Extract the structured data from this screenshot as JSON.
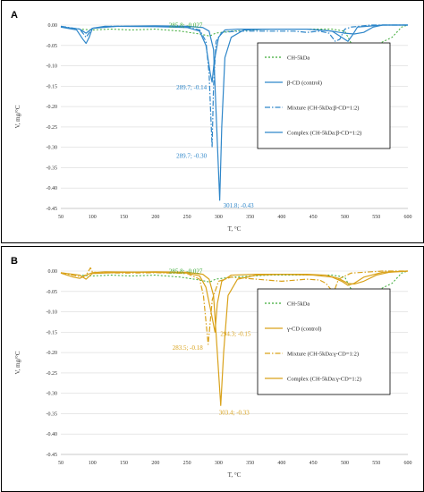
{
  "chart_data": [
    {
      "panel": "A",
      "type": "line",
      "xlabel": "T, °C",
      "ylabel": "V, mg/°C",
      "xlim": [
        50,
        600
      ],
      "ylim": [
        -0.45,
        0.0
      ],
      "x_ticks": [
        "50",
        "100",
        "150",
        "200",
        "250",
        "300",
        "350",
        "400",
        "450",
        "500",
        "550",
        "600"
      ],
      "y_ticks": [
        "0.00",
        "-0.05",
        "-0.10",
        "-0.15",
        "-0.20",
        "-0.25",
        "-0.30",
        "-0.35",
        "-0.40",
        "-0.45"
      ],
      "legend_position": "right",
      "series": [
        {
          "name": "CH-5kDa",
          "color": "#3aaa35",
          "dash": "dotted",
          "x": [
            50,
            80,
            100,
            130,
            160,
            200,
            240,
            270,
            285.8,
            295,
            320,
            380,
            440,
            480,
            500,
            512,
            525,
            540,
            555,
            575,
            590,
            600
          ],
          "y": [
            -0.005,
            -0.01,
            -0.012,
            -0.01,
            -0.012,
            -0.01,
            -0.015,
            -0.022,
            -0.027,
            -0.02,
            -0.015,
            -0.01,
            -0.01,
            -0.01,
            -0.015,
            -0.05,
            -0.058,
            -0.052,
            -0.045,
            -0.03,
            -0.005,
            0.0
          ]
        },
        {
          "name": "β-CD (control)",
          "color": "#2e86c9",
          "dash": "solid",
          "x": [
            50,
            75,
            85,
            90,
            95,
            100,
            120,
            200,
            250,
            270,
            280,
            287,
            289.7,
            293,
            300,
            310,
            330,
            380,
            440,
            460,
            480,
            495,
            505,
            512,
            520,
            560,
            600
          ],
          "y": [
            -0.005,
            -0.012,
            -0.035,
            -0.045,
            -0.03,
            -0.008,
            -0.003,
            -0.004,
            -0.006,
            -0.015,
            -0.05,
            -0.12,
            -0.14,
            -0.09,
            -0.03,
            -0.012,
            -0.01,
            -0.01,
            -0.01,
            -0.012,
            -0.015,
            -0.03,
            -0.04,
            -0.025,
            -0.005,
            0.0,
            0.0
          ]
        },
        {
          "name": "Mixture (CH-5kDa:β-CD=1:2)",
          "color": "#2e86c9",
          "dash": "dashdot",
          "x": [
            50,
            80,
            90,
            100,
            130,
            200,
            250,
            270,
            280,
            285,
            289.7,
            292,
            296,
            305,
            330,
            380,
            420,
            440,
            460,
            475,
            485,
            492,
            500,
            510,
            540,
            600
          ],
          "y": [
            -0.003,
            -0.01,
            -0.03,
            -0.008,
            -0.003,
            -0.003,
            -0.005,
            -0.012,
            -0.04,
            -0.12,
            -0.3,
            -0.15,
            -0.04,
            -0.018,
            -0.015,
            -0.015,
            -0.015,
            -0.018,
            -0.015,
            -0.02,
            -0.04,
            -0.035,
            -0.01,
            -0.005,
            0.0,
            0.0
          ]
        },
        {
          "name": "Complex (CH-5kDa:β-CD=1:2)",
          "color": "#2e86c9",
          "dash": "solid",
          "x": [
            50,
            80,
            90,
            100,
            140,
            200,
            250,
            275,
            285,
            292,
            297,
            301.8,
            305,
            310,
            320,
            340,
            380,
            440,
            480,
            500,
            515,
            530,
            545,
            560,
            600
          ],
          "y": [
            -0.004,
            -0.01,
            -0.02,
            -0.008,
            -0.003,
            -0.002,
            -0.003,
            -0.006,
            -0.015,
            -0.06,
            -0.25,
            -0.43,
            -0.25,
            -0.08,
            -0.03,
            -0.012,
            -0.01,
            -0.01,
            -0.015,
            -0.02,
            -0.022,
            -0.018,
            -0.005,
            0.0,
            0.0
          ]
        }
      ],
      "annotations": [
        {
          "text": "285.8; -0.027",
          "x": 285.8,
          "y": -0.027,
          "color": "#3aaa35"
        },
        {
          "text": "289.7; -0.14",
          "x": 289.7,
          "y": -0.14,
          "color": "#2e86c9"
        },
        {
          "text": "289.7; -0.30",
          "x": 289.7,
          "y": -0.3,
          "color": "#2e86c9"
        },
        {
          "text": "301.8; -0.43",
          "x": 301.8,
          "y": -0.43,
          "color": "#2e86c9"
        }
      ]
    },
    {
      "panel": "B",
      "type": "line",
      "xlabel": "T, °C",
      "ylabel": "V, mg/°C",
      "xlim": [
        50,
        600
      ],
      "ylim": [
        -0.45,
        0.0
      ],
      "x_ticks": [
        "50",
        "100",
        "150",
        "200",
        "250",
        "300",
        "350",
        "400",
        "450",
        "500",
        "550",
        "600"
      ],
      "y_ticks": [
        "0.00",
        "-0.05",
        "-0.10",
        "-0.15",
        "-0.20",
        "-0.25",
        "-0.30",
        "-0.35",
        "-0.40",
        "-0.45"
      ],
      "legend_position": "right",
      "series": [
        {
          "name": "CH-5kDa",
          "color": "#3aaa35",
          "dash": "dotted",
          "x": [
            50,
            80,
            100,
            130,
            160,
            200,
            240,
            270,
            285.8,
            295,
            320,
            380,
            440,
            480,
            500,
            512,
            525,
            540,
            555,
            575,
            590,
            600
          ],
          "y": [
            -0.005,
            -0.01,
            -0.012,
            -0.01,
            -0.012,
            -0.01,
            -0.015,
            -0.022,
            -0.027,
            -0.02,
            -0.015,
            -0.01,
            -0.01,
            -0.01,
            -0.015,
            -0.05,
            -0.058,
            -0.052,
            -0.045,
            -0.03,
            -0.005,
            0.0
          ]
        },
        {
          "name": "γ-CD (control)",
          "color": "#d9a21b",
          "dash": "solid",
          "x": [
            50,
            70,
            80,
            90,
            100,
            120,
            200,
            250,
            270,
            280,
            288,
            294.3,
            298,
            305,
            320,
            360,
            400,
            450,
            480,
            495,
            505,
            515,
            530,
            560,
            600
          ],
          "y": [
            -0.005,
            -0.015,
            -0.018,
            -0.01,
            -0.004,
            -0.002,
            -0.003,
            -0.005,
            -0.012,
            -0.04,
            -0.1,
            -0.15,
            -0.08,
            -0.025,
            -0.01,
            -0.008,
            -0.008,
            -0.01,
            -0.015,
            -0.025,
            -0.035,
            -0.03,
            -0.015,
            -0.003,
            0.0
          ]
        },
        {
          "name": "Mixture (CH-5kDa:γ-CD=1:2)",
          "color": "#d9a21b",
          "dash": "dashdot",
          "x": [
            50,
            75,
            85,
            92,
            97,
            100,
            110,
            150,
            200,
            250,
            270,
            276,
            283.5,
            290,
            300,
            320,
            360,
            400,
            440,
            460,
            470,
            478,
            483,
            490,
            510,
            560,
            600
          ],
          "y": [
            -0.004,
            -0.012,
            -0.015,
            -0.005,
            0.008,
            -0.002,
            -0.004,
            -0.005,
            -0.004,
            -0.006,
            -0.02,
            -0.06,
            -0.18,
            -0.07,
            -0.025,
            -0.015,
            -0.02,
            -0.025,
            -0.02,
            -0.022,
            -0.03,
            -0.045,
            -0.05,
            -0.02,
            -0.005,
            0.0,
            0.0
          ]
        },
        {
          "name": "Complex (CH-5kDa:γ-CD=1:2)",
          "color": "#d9a21b",
          "dash": "solid",
          "x": [
            50,
            80,
            90,
            100,
            150,
            200,
            250,
            275,
            285,
            292,
            298,
            303.4,
            308,
            315,
            330,
            360,
            400,
            440,
            470,
            490,
            505,
            515,
            530,
            550,
            570,
            600
          ],
          "y": [
            -0.004,
            -0.01,
            -0.02,
            -0.006,
            -0.003,
            -0.002,
            -0.003,
            -0.008,
            -0.02,
            -0.06,
            -0.2,
            -0.33,
            -0.2,
            -0.06,
            -0.02,
            -0.01,
            -0.008,
            -0.008,
            -0.01,
            -0.018,
            -0.03,
            -0.032,
            -0.025,
            -0.01,
            -0.003,
            0.0
          ]
        }
      ],
      "annotations": [
        {
          "text": "285.8; -0.027",
          "x": 285.8,
          "y": -0.027,
          "color": "#3aaa35"
        },
        {
          "text": "294.3; -0.15",
          "x": 294.3,
          "y": -0.15,
          "color": "#d9a21b"
        },
        {
          "text": "283.5; -0.18",
          "x": 283.5,
          "y": -0.18,
          "color": "#d9a21b"
        },
        {
          "text": "303.4; -0.33",
          "x": 303.4,
          "y": -0.33,
          "color": "#d9a21b"
        }
      ]
    }
  ]
}
